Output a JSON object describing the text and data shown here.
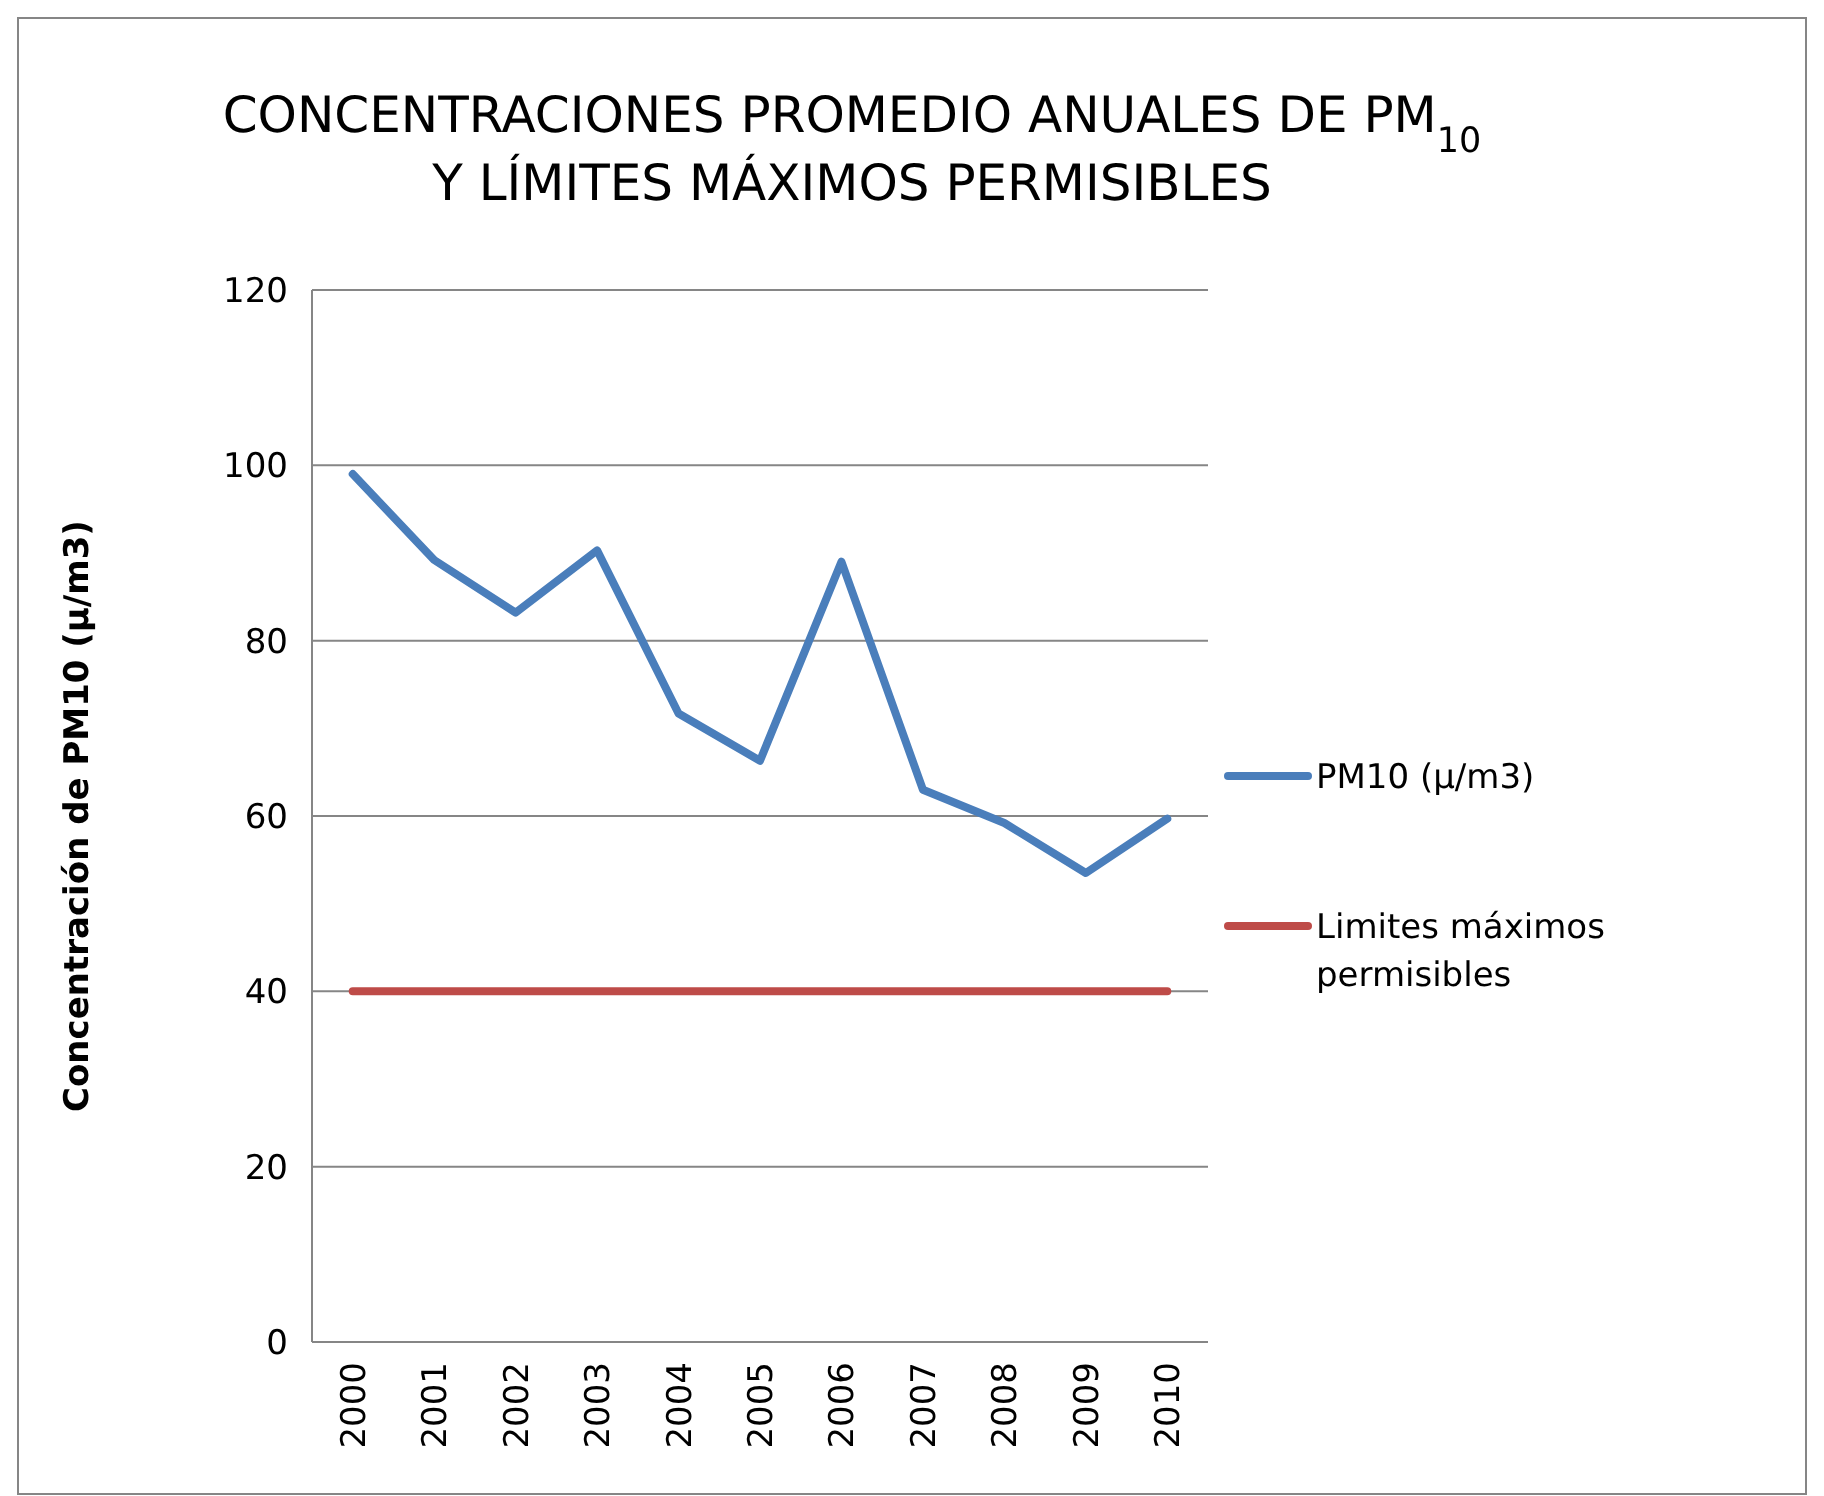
{
  "chart_data": {
    "type": "line",
    "title": "CONCENTRACIONES PROMEDIO ANUALES DE PM$_{10}$ Y LÍMITES MÁXIMOS PERMISIBLES",
    "ylabel": "Concentración de PM10 (μ/m3)",
    "categories": [
      "2000",
      "2001",
      "2002",
      "2003",
      "2004",
      "2005",
      "2006",
      "2007",
      "2008",
      "2009",
      "2010"
    ],
    "series": [
      {
        "name": "PM10 (μ/m3)",
        "color": "#4a7ebb",
        "values": [
          99,
          89.2,
          83.2,
          90.3,
          71.7,
          66.3,
          89,
          63,
          59.2,
          53.5,
          59.7
        ]
      },
      {
        "name": "Limites máximos permisibles",
        "color": "#be4b48",
        "values": [
          40,
          40,
          40,
          40,
          40,
          40,
          40,
          40,
          40,
          40,
          40
        ]
      }
    ],
    "ylim": [
      0,
      120
    ],
    "yticks": [
      0,
      20,
      40,
      60,
      80,
      100,
      120
    ],
    "grid": "y",
    "legend": "right",
    "marker": "none",
    "line_style": "solid"
  }
}
